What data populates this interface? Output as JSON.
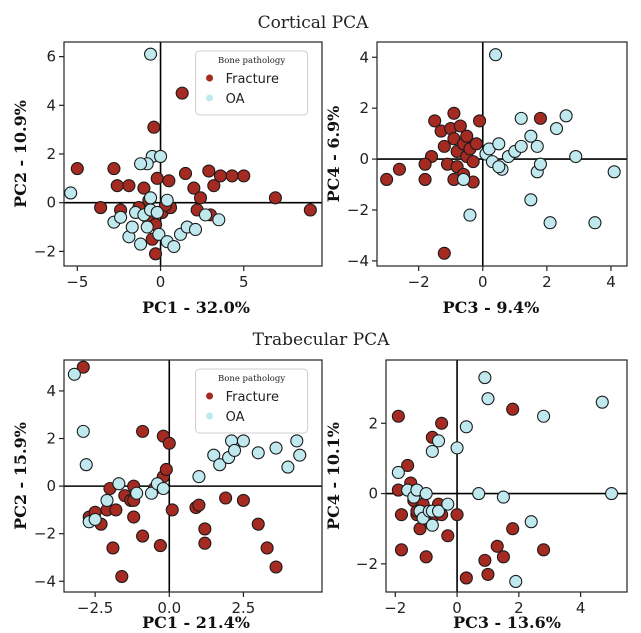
{
  "sections": [
    {
      "id": "cortical",
      "title": "Cortical PCA"
    },
    {
      "id": "trabecular",
      "title": "Trabecular PCA"
    }
  ],
  "colors": {
    "Fracture": "#a52a22",
    "OA": "#bfe9ef",
    "edge": "#1a1a1a"
  },
  "chart_data": [
    {
      "type": "scatter",
      "section": "cortical",
      "xlabel": "PC1 - 32.0%",
      "ylabel": "PC2 - 10.9%",
      "xlim": [
        -5.8,
        9.7
      ],
      "ylim": [
        -2.6,
        6.6
      ],
      "xticks": [
        -5,
        0,
        5
      ],
      "yticks": [
        -2,
        0,
        2,
        4,
        6
      ],
      "tick_labels_x": [
        "−5",
        "0",
        "5"
      ],
      "tick_labels_y": [
        "−2",
        "0",
        "2",
        "4",
        "6"
      ],
      "legend": {
        "title": "Bone pathology",
        "position": "top-right-inner"
      },
      "series": [
        {
          "name": "Fracture",
          "points": [
            [
              -5.0,
              1.4
            ],
            [
              -3.6,
              -0.2
            ],
            [
              -2.8,
              1.4
            ],
            [
              -2.6,
              0.7
            ],
            [
              -1.9,
              0.7
            ],
            [
              -2.4,
              -0.3
            ],
            [
              -1.3,
              -0.2
            ],
            [
              -1.0,
              0.6
            ],
            [
              -0.8,
              -0.6
            ],
            [
              -0.7,
              0.1
            ],
            [
              -0.5,
              -1.5
            ],
            [
              -0.3,
              -2.1
            ],
            [
              -0.3,
              -0.9
            ],
            [
              -0.2,
              1.0
            ],
            [
              -0.4,
              3.1
            ],
            [
              0.1,
              -0.4
            ],
            [
              0.6,
              -0.2
            ],
            [
              0.3,
              -0.1
            ],
            [
              1.3,
              4.5
            ],
            [
              1.5,
              1.2
            ],
            [
              2.0,
              0.6
            ],
            [
              2.2,
              -0.3
            ],
            [
              2.4,
              0.2
            ],
            [
              3.0,
              -0.5
            ],
            [
              2.9,
              1.3
            ],
            [
              3.2,
              0.7
            ],
            [
              3.6,
              1.1
            ],
            [
              4.3,
              1.1
            ],
            [
              5.0,
              1.1
            ],
            [
              6.9,
              0.2
            ],
            [
              9.0,
              -0.3
            ],
            [
              0.5,
              0.9
            ]
          ]
        },
        {
          "name": "OA",
          "points": [
            [
              -0.6,
              6.1
            ],
            [
              -5.4,
              0.4
            ],
            [
              -2.8,
              -0.8
            ],
            [
              -2.4,
              -0.6
            ],
            [
              -1.9,
              -1.4
            ],
            [
              -1.7,
              -1.0
            ],
            [
              -1.5,
              -0.4
            ],
            [
              -1.2,
              -1.7
            ],
            [
              -1.0,
              -0.5
            ],
            [
              -0.8,
              -1.0
            ],
            [
              -0.6,
              -0.3
            ],
            [
              -0.5,
              1.9
            ],
            [
              -0.8,
              1.6
            ],
            [
              -1.2,
              1.6
            ],
            [
              -0.6,
              0.2
            ],
            [
              -0.2,
              -0.4
            ],
            [
              -0.1,
              -1.3
            ],
            [
              0.4,
              -1.6
            ],
            [
              0.4,
              0.1
            ],
            [
              0.8,
              -1.8
            ],
            [
              1.2,
              -1.3
            ],
            [
              1.6,
              -1.0
            ],
            [
              2.1,
              -1.1
            ],
            [
              2.7,
              -0.5
            ],
            [
              3.5,
              -0.7
            ],
            [
              0.0,
              1.9
            ]
          ]
        }
      ]
    },
    {
      "type": "scatter",
      "section": "cortical",
      "xlabel": "PC3 - 9.4%",
      "ylabel": "PC4 - 6.9%",
      "xlim": [
        -3.3,
        4.5
      ],
      "ylim": [
        -4.2,
        4.6
      ],
      "xticks": [
        -2,
        0,
        2,
        4
      ],
      "yticks": [
        -4,
        -2,
        0,
        2,
        4
      ],
      "tick_labels_x": [
        "−2",
        "0",
        "2",
        "4"
      ],
      "tick_labels_y": [
        "−4",
        "−2",
        "0",
        "2",
        "4"
      ],
      "legend": null,
      "series": [
        {
          "name": "Fracture",
          "points": [
            [
              -3.0,
              -0.8
            ],
            [
              -2.6,
              -0.4
            ],
            [
              -1.8,
              -0.8
            ],
            [
              -1.6,
              0.1
            ],
            [
              -1.5,
              1.5
            ],
            [
              -1.3,
              1.1
            ],
            [
              -1.2,
              0.5
            ],
            [
              -1.1,
              -0.2
            ],
            [
              -1.0,
              1.2
            ],
            [
              -0.9,
              1.8
            ],
            [
              -0.9,
              0.8
            ],
            [
              -0.8,
              0.3
            ],
            [
              -0.8,
              -0.3
            ],
            [
              -0.7,
              1.3
            ],
            [
              -0.6,
              0.6
            ],
            [
              -0.6,
              -0.6
            ],
            [
              -0.5,
              0.1
            ],
            [
              -0.5,
              0.9
            ],
            [
              -0.4,
              0.4
            ],
            [
              -0.3,
              -0.1
            ],
            [
              -0.2,
              0.6
            ],
            [
              -0.1,
              1.5
            ],
            [
              -1.2,
              -3.7
            ],
            [
              -0.3,
              -0.9
            ],
            [
              1.8,
              1.6
            ],
            [
              0.1,
              0.2
            ],
            [
              -1.8,
              -0.2
            ],
            [
              -0.9,
              -0.8
            ]
          ]
        },
        {
          "name": "OA",
          "points": [
            [
              0.4,
              4.1
            ],
            [
              -0.6,
              -0.8
            ],
            [
              -0.4,
              -2.2
            ],
            [
              0.1,
              0.2
            ],
            [
              0.2,
              0.4
            ],
            [
              0.3,
              -0.1
            ],
            [
              0.5,
              0.6
            ],
            [
              0.6,
              -0.4
            ],
            [
              0.8,
              0.1
            ],
            [
              1.0,
              0.3
            ],
            [
              1.2,
              1.6
            ],
            [
              1.2,
              0.5
            ],
            [
              1.5,
              0.9
            ],
            [
              1.5,
              -1.6
            ],
            [
              1.7,
              -0.5
            ],
            [
              1.7,
              0.5
            ],
            [
              2.1,
              -2.5
            ],
            [
              2.3,
              1.2
            ],
            [
              2.6,
              1.7
            ],
            [
              3.5,
              -2.5
            ],
            [
              4.1,
              -0.5
            ],
            [
              2.9,
              0.1
            ],
            [
              0.5,
              -0.3
            ],
            [
              1.8,
              -0.2
            ]
          ]
        }
      ]
    },
    {
      "type": "scatter",
      "section": "trabecular",
      "xlabel": "PC1 - 21.4%",
      "ylabel": "PC2 - 15.9%",
      "xlim": [
        -3.55,
        5.15
      ],
      "ylim": [
        -4.45,
        5.3
      ],
      "xticks": [
        -2.5,
        0.0,
        2.5
      ],
      "yticks": [
        -4,
        -2,
        0,
        2,
        4
      ],
      "tick_labels_x": [
        "−2.5",
        "0.0",
        "2.5"
      ],
      "tick_labels_y": [
        "−4",
        "−2",
        "0",
        "2",
        "4"
      ],
      "legend": {
        "title": "Bone pathology",
        "position": "top-right-inner"
      },
      "series": [
        {
          "name": "Fracture",
          "points": [
            [
              -2.9,
              5.0
            ],
            [
              -2.7,
              -1.3
            ],
            [
              -2.5,
              -1.1
            ],
            [
              -2.3,
              -1.6
            ],
            [
              -2.1,
              -1.0
            ],
            [
              -1.9,
              -2.6
            ],
            [
              -1.8,
              -1.0
            ],
            [
              -1.6,
              -3.8
            ],
            [
              -1.5,
              -0.4
            ],
            [
              -1.3,
              -0.6
            ],
            [
              -1.2,
              -0.6
            ],
            [
              -1.2,
              -1.3
            ],
            [
              -0.9,
              -2.1
            ],
            [
              -0.9,
              2.3
            ],
            [
              -0.5,
              -0.1
            ],
            [
              -0.3,
              -2.5
            ],
            [
              -0.2,
              0.4
            ],
            [
              -0.2,
              2.1
            ],
            [
              0.0,
              1.8
            ],
            [
              0.1,
              -1.0
            ],
            [
              0.9,
              -0.9
            ],
            [
              1.0,
              -0.8
            ],
            [
              1.2,
              -1.8
            ],
            [
              1.2,
              -2.4
            ],
            [
              1.9,
              -0.5
            ],
            [
              2.5,
              -0.6
            ],
            [
              3.0,
              -1.6
            ],
            [
              3.3,
              -2.6
            ],
            [
              3.6,
              -3.4
            ],
            [
              -0.1,
              0.7
            ],
            [
              -2.0,
              -0.1
            ],
            [
              -1.2,
              0.0
            ]
          ]
        },
        {
          "name": "OA",
          "points": [
            [
              -3.2,
              4.7
            ],
            [
              -2.9,
              2.3
            ],
            [
              -2.8,
              0.9
            ],
            [
              -2.7,
              -1.5
            ],
            [
              -2.5,
              -1.4
            ],
            [
              -2.1,
              -0.6
            ],
            [
              -1.7,
              0.1
            ],
            [
              -1.1,
              -0.3
            ],
            [
              -0.6,
              -0.3
            ],
            [
              -0.4,
              0.1
            ],
            [
              -0.2,
              -0.1
            ],
            [
              1.0,
              0.4
            ],
            [
              1.5,
              1.3
            ],
            [
              1.7,
              0.9
            ],
            [
              2.0,
              1.2
            ],
            [
              2.1,
              1.9
            ],
            [
              2.5,
              1.9
            ],
            [
              3.0,
              1.4
            ],
            [
              3.6,
              1.6
            ],
            [
              4.0,
              0.8
            ],
            [
              4.3,
              1.9
            ],
            [
              4.4,
              1.3
            ],
            [
              2.2,
              1.5
            ],
            [
              2.6,
              2.7
            ]
          ]
        }
      ]
    },
    {
      "type": "scatter",
      "section": "trabecular",
      "xlabel": "PC3 - 13.6%",
      "ylabel": "PC4 - 10.1%",
      "xlim": [
        -2.3,
        5.5
      ],
      "ylim": [
        -2.8,
        3.8
      ],
      "xticks": [
        -2,
        0,
        2,
        4
      ],
      "yticks": [
        -2,
        0,
        2
      ],
      "tick_labels_x": [
        "−2",
        "0",
        "2",
        "4"
      ],
      "tick_labels_y": [
        "−2",
        "0",
        "2"
      ],
      "legend": null,
      "series": [
        {
          "name": "Fracture",
          "points": [
            [
              -1.9,
              2.2
            ],
            [
              -1.9,
              0.1
            ],
            [
              -1.8,
              -0.6
            ],
            [
              -1.8,
              -1.6
            ],
            [
              -1.6,
              0.8
            ],
            [
              -1.5,
              0.3
            ],
            [
              -1.4,
              -0.2
            ],
            [
              -1.3,
              -0.6
            ],
            [
              -1.2,
              -1.0
            ],
            [
              -1.1,
              -0.3
            ],
            [
              -1.0,
              -1.8
            ],
            [
              -0.9,
              -0.8
            ],
            [
              -0.8,
              1.6
            ],
            [
              -0.7,
              -0.6
            ],
            [
              -0.6,
              -0.3
            ],
            [
              -0.5,
              2.0
            ],
            [
              -0.5,
              -0.6
            ],
            [
              -0.3,
              -1.2
            ],
            [
              0.0,
              -0.6
            ],
            [
              0.3,
              -2.4
            ],
            [
              0.9,
              -1.9
            ],
            [
              1.0,
              -2.3
            ],
            [
              1.3,
              -1.5
            ],
            [
              1.5,
              -1.8
            ],
            [
              1.8,
              2.4
            ],
            [
              1.8,
              -1.0
            ],
            [
              2.8,
              -1.6
            ],
            [
              -1.3,
              -0.5
            ]
          ]
        },
        {
          "name": "OA",
          "points": [
            [
              -1.9,
              0.6
            ],
            [
              -1.6,
              0.1
            ],
            [
              -1.4,
              -0.1
            ],
            [
              -1.3,
              0.1
            ],
            [
              -1.2,
              -0.5
            ],
            [
              -1.1,
              -0.7
            ],
            [
              -1.0,
              0.0
            ],
            [
              -0.9,
              -0.5
            ],
            [
              -0.8,
              -0.9
            ],
            [
              -0.8,
              -0.5
            ],
            [
              -0.8,
              1.2
            ],
            [
              -0.6,
              1.5
            ],
            [
              -0.6,
              -0.5
            ],
            [
              -0.3,
              -0.3
            ],
            [
              0.0,
              1.3
            ],
            [
              0.3,
              1.9
            ],
            [
              0.7,
              0.0
            ],
            [
              0.9,
              3.3
            ],
            [
              1.0,
              2.7
            ],
            [
              1.5,
              -0.1
            ],
            [
              1.9,
              -2.5
            ],
            [
              2.4,
              -0.8
            ],
            [
              2.8,
              2.2
            ],
            [
              4.7,
              2.6
            ],
            [
              5.0,
              0.0
            ]
          ]
        }
      ]
    }
  ]
}
